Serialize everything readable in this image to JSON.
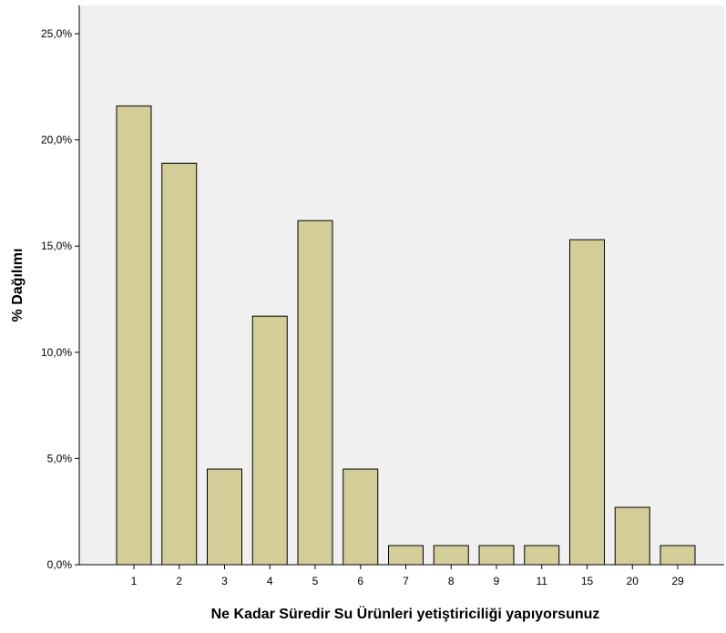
{
  "chart_data": {
    "type": "bar",
    "categories": [
      "1",
      "2",
      "3",
      "4",
      "5",
      "6",
      "7",
      "8",
      "9",
      "11",
      "15",
      "20",
      "29"
    ],
    "values": [
      21.6,
      18.9,
      4.5,
      11.7,
      16.2,
      4.5,
      0.9,
      0.9,
      0.9,
      0.9,
      15.3,
      2.7,
      0.9
    ],
    "title": "",
    "xlabel": "Ne Kadar Süredir Su Ürünleri yetiştiriciliği yapıyorsunuz",
    "ylabel": "% Dağılımı",
    "ylim": [
      0,
      25.0
    ],
    "yticks": [
      "0,0%",
      "5,0%",
      "10,0%",
      "15,0%",
      "20,0%",
      "25,0%"
    ],
    "grid": false,
    "legend": "none",
    "colors": {
      "plot_background": "#f0f0f0",
      "bar_fill": "#d3ce97",
      "bar_stroke": "#000000",
      "axis": "#000000"
    }
  }
}
